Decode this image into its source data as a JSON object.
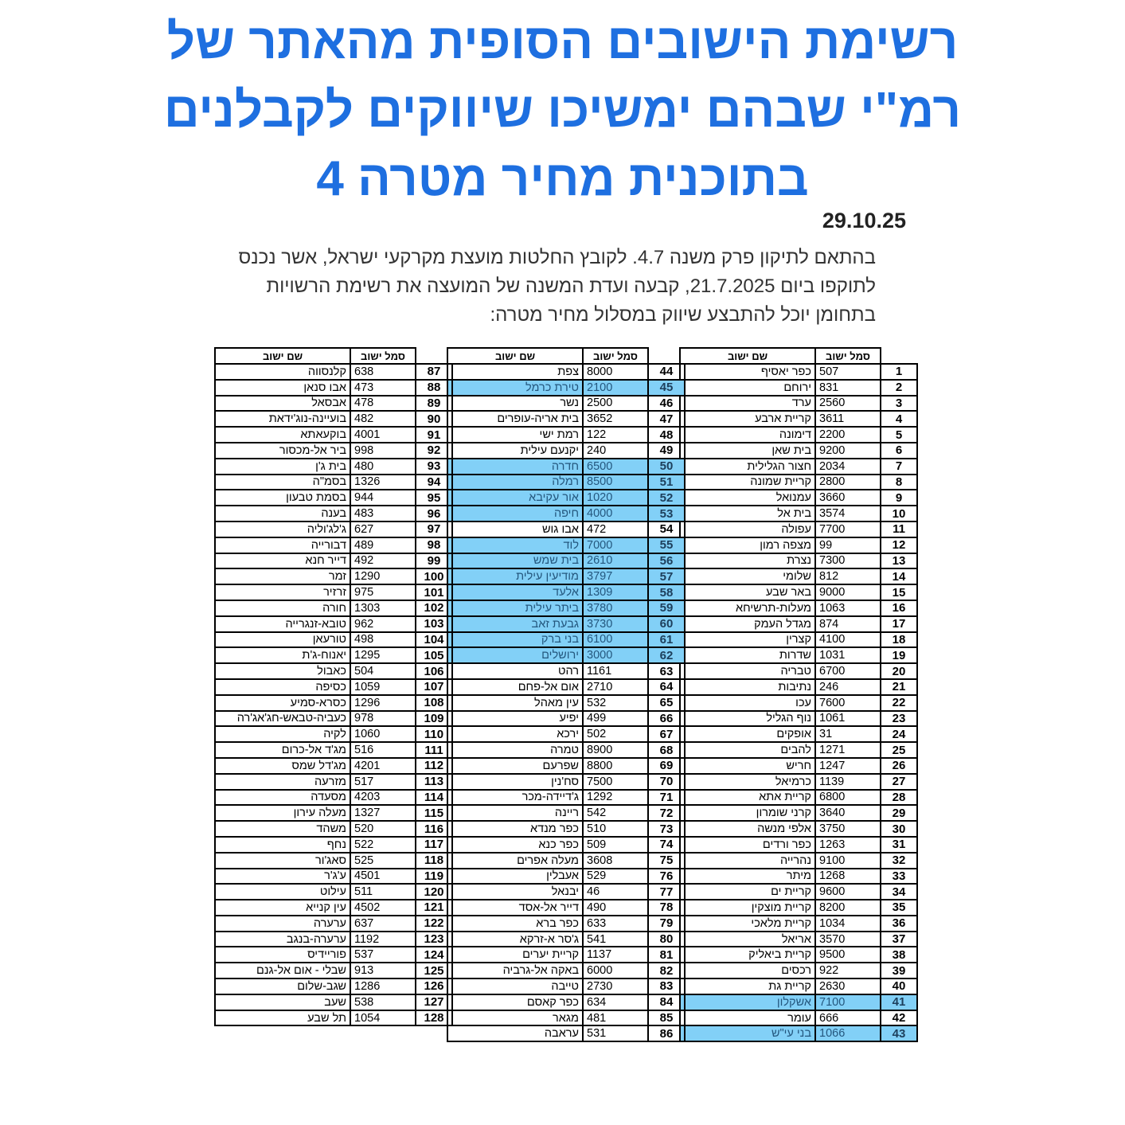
{
  "title": {
    "lines": [
      "רשימת הישובים הסופית מהאתר של",
      "רמ\"י שבהם ימשיכו שיווקים לקבלנים",
      "בתוכנית מחיר מטרה 4"
    ],
    "color": "#1e6fe0"
  },
  "date": "29.10.25",
  "intro": {
    "lines": [
      "בהתאם לתיקון פרק משנה 4.7. לקובץ החלטות מועצת מקרקעי ישראל, אשר נכנס",
      "לתוקפו ביום 21.7.2025, קבעה ועדת המשנה של המועצה את רשימת הרשויות",
      "בתחומן יוכל להתבצע שיווק במסלול מחיר מטרה:"
    ]
  },
  "table_headers": {
    "code": "סמל ישוב",
    "name": "שם ישוב"
  },
  "highlight_color": "#82d0f7",
  "highlighted": [
    41,
    43,
    45,
    50,
    51,
    52,
    53,
    55,
    56,
    57,
    58,
    59,
    60,
    61,
    62
  ],
  "rows": [
    [
      1,
      "507",
      "כפר יאסיף"
    ],
    [
      2,
      "831",
      "ירוחם"
    ],
    [
      3,
      "2560",
      "ערד"
    ],
    [
      4,
      "3611",
      "קריית ארבע"
    ],
    [
      5,
      "2200",
      "דימונה"
    ],
    [
      6,
      "9200",
      "בית שאן"
    ],
    [
      7,
      "2034",
      "חצור הגלילית"
    ],
    [
      8,
      "2800",
      "קריית שמונה"
    ],
    [
      9,
      "3660",
      "עמנואל"
    ],
    [
      10,
      "3574",
      "בית אל"
    ],
    [
      11,
      "7700",
      "עפולה"
    ],
    [
      12,
      "99",
      "מצפה רמון"
    ],
    [
      13,
      "7300",
      "נצרת"
    ],
    [
      14,
      "812",
      "שלומי"
    ],
    [
      15,
      "9000",
      "באר שבע"
    ],
    [
      16,
      "1063",
      "מעלות-תרשיחא"
    ],
    [
      17,
      "874",
      "מגדל העמק"
    ],
    [
      18,
      "4100",
      "קצרין"
    ],
    [
      19,
      "1031",
      "שדרות"
    ],
    [
      20,
      "6700",
      "טבריה"
    ],
    [
      21,
      "246",
      "נתיבות"
    ],
    [
      22,
      "7600",
      "עכו"
    ],
    [
      23,
      "1061",
      "נוף הגליל"
    ],
    [
      24,
      "31",
      "אופקים"
    ],
    [
      25,
      "1271",
      "להבים"
    ],
    [
      26,
      "1247",
      "חריש"
    ],
    [
      27,
      "1139",
      "כרמיאל"
    ],
    [
      28,
      "6800",
      "קריית אתא"
    ],
    [
      29,
      "3640",
      "קרני שומרון"
    ],
    [
      30,
      "3750",
      "אלפי מנשה"
    ],
    [
      31,
      "1263",
      "כפר ורדים"
    ],
    [
      32,
      "9100",
      "נהרייה"
    ],
    [
      33,
      "1268",
      "מיתר"
    ],
    [
      34,
      "9600",
      "קריית ים"
    ],
    [
      35,
      "8200",
      "קריית מוצקין"
    ],
    [
      36,
      "1034",
      "קריית מלאכי"
    ],
    [
      37,
      "3570",
      "אריאל"
    ],
    [
      38,
      "9500",
      "קריית ביאליק"
    ],
    [
      39,
      "922",
      "רכסים"
    ],
    [
      40,
      "2630",
      "קריית גת"
    ],
    [
      41,
      "7100",
      "אשקלון"
    ],
    [
      42,
      "666",
      "עומר"
    ],
    [
      43,
      "1066",
      "בני עי\"ש"
    ],
    [
      44,
      "8000",
      "צפת"
    ],
    [
      45,
      "2100",
      "טירת כרמל"
    ],
    [
      46,
      "2500",
      "נשר"
    ],
    [
      47,
      "3652",
      "בית אריה-עופרים"
    ],
    [
      48,
      "122",
      "רמת ישי"
    ],
    [
      49,
      "240",
      "יקנעם עילית"
    ],
    [
      50,
      "6500",
      "חדרה"
    ],
    [
      51,
      "8500",
      "רמלה"
    ],
    [
      52,
      "1020",
      "אור עקיבא"
    ],
    [
      53,
      "4000",
      "חיפה"
    ],
    [
      54,
      "472",
      "אבו גוש"
    ],
    [
      55,
      "7000",
      "לוד"
    ],
    [
      56,
      "2610",
      "בית שמש"
    ],
    [
      57,
      "3797",
      "מודיעין עילית"
    ],
    [
      58,
      "1309",
      "אלעד"
    ],
    [
      59,
      "3780",
      "ביתר עילית"
    ],
    [
      60,
      "3730",
      "גבעת זאב"
    ],
    [
      61,
      "6100",
      "בני ברק"
    ],
    [
      62,
      "3000",
      "ירושלים"
    ],
    [
      63,
      "1161",
      "רהט"
    ],
    [
      64,
      "2710",
      "אום אל-פחם"
    ],
    [
      65,
      "532",
      "עין מאהל"
    ],
    [
      66,
      "499",
      "יפיע"
    ],
    [
      67,
      "502",
      "ירכא"
    ],
    [
      68,
      "8900",
      "טמרה"
    ],
    [
      69,
      "8800",
      "שפרעם"
    ],
    [
      70,
      "7500",
      "סח'נין"
    ],
    [
      71,
      "1292",
      "ג'דיידה-מכר"
    ],
    [
      72,
      "542",
      "ריינה"
    ],
    [
      73,
      "510",
      "כפר מנדא"
    ],
    [
      74,
      "509",
      "כפר כנא"
    ],
    [
      75,
      "3608",
      "מעלה אפרים"
    ],
    [
      76,
      "529",
      "אעבלין"
    ],
    [
      77,
      "46",
      "יבנאל"
    ],
    [
      78,
      "490",
      "דייר אל-אסד"
    ],
    [
      79,
      "633",
      "כפר ברא"
    ],
    [
      80,
      "541",
      "ג'סר א-זרקא"
    ],
    [
      81,
      "1137",
      "קריית יערים"
    ],
    [
      82,
      "6000",
      "באקה אל-גרביה"
    ],
    [
      83,
      "2730",
      "טייבה"
    ],
    [
      84,
      "634",
      "כפר קאסם"
    ],
    [
      85,
      "481",
      "מגאר"
    ],
    [
      86,
      "531",
      "עראבה"
    ],
    [
      87,
      "638",
      "קלנסווה"
    ],
    [
      88,
      "473",
      "אבו סנאן"
    ],
    [
      89,
      "478",
      "אבסאל"
    ],
    [
      90,
      "482",
      "בועיינה-נוג'ידאת"
    ],
    [
      91,
      "4001",
      "בוקעאתא"
    ],
    [
      92,
      "998",
      "ביר אל-מכסור"
    ],
    [
      93,
      "480",
      "בית ג'ן"
    ],
    [
      94,
      "1326",
      "בסמ\"ה"
    ],
    [
      95,
      "944",
      "בסמת טבעון"
    ],
    [
      96,
      "483",
      "בענה"
    ],
    [
      97,
      "627",
      "ג'לג'וליה"
    ],
    [
      98,
      "489",
      "דבורייה"
    ],
    [
      99,
      "492",
      "דייר חנא"
    ],
    [
      100,
      "1290",
      "זמר"
    ],
    [
      101,
      "975",
      "זרזיר"
    ],
    [
      102,
      "1303",
      "חורה"
    ],
    [
      103,
      "962",
      "טובא-זנגרייה"
    ],
    [
      104,
      "498",
      "טורעאן"
    ],
    [
      105,
      "1295",
      "יאנוח-ג'ת"
    ],
    [
      106,
      "504",
      "כאבול"
    ],
    [
      107,
      "1059",
      "כסיפה"
    ],
    [
      108,
      "1296",
      "כסרא-סמיע"
    ],
    [
      109,
      "978",
      "כעביה-טבאש-חג'אג'רה"
    ],
    [
      110,
      "1060",
      "לקיה"
    ],
    [
      111,
      "516",
      "מג'ד אל-כרום"
    ],
    [
      112,
      "4201",
      "מג'דל שמס"
    ],
    [
      113,
      "517",
      "מזרעה"
    ],
    [
      114,
      "4203",
      "מסעדה"
    ],
    [
      115,
      "1327",
      "מעלה עירון"
    ],
    [
      116,
      "520",
      "משהד"
    ],
    [
      117,
      "522",
      "נחף"
    ],
    [
      118,
      "525",
      "סאג'ור"
    ],
    [
      119,
      "4501",
      "ע'ג'ר"
    ],
    [
      120,
      "511",
      "עילוט"
    ],
    [
      121,
      "4502",
      "עין קנייא"
    ],
    [
      122,
      "637",
      "ערערה"
    ],
    [
      123,
      "1192",
      "ערערה-בנגב"
    ],
    [
      124,
      "537",
      "פוריידיס"
    ],
    [
      125,
      "913",
      "שבלי - אום אל-גנם"
    ],
    [
      126,
      "1286",
      "שגב-שלום"
    ],
    [
      127,
      "538",
      "שעב"
    ],
    [
      128,
      "1054",
      "תל שבע"
    ]
  ]
}
